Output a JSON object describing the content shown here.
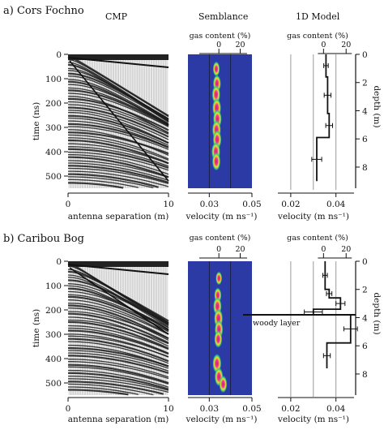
{
  "chart_data": [
    {
      "panel": "a",
      "panel_title": "a) Cors Fochno",
      "type": "figure-row",
      "columns": {
        "cmp": {
          "title": "CMP",
          "xlabel": "antenna separation (m)",
          "ylabel": "time (ns)",
          "xlim": [
            0,
            10
          ],
          "ylim": [
            0,
            550
          ],
          "xticks": [
            "0",
            "10"
          ],
          "yticks": [
            "0",
            "100",
            "200",
            "300",
            "400",
            "500"
          ]
        },
        "semblance": {
          "title": "Semblance",
          "top_label": "gas content (%)",
          "top_ticks": [
            "0",
            "20"
          ],
          "xlabel": "velocity (m ns⁻¹)",
          "xticks": [
            "0.03",
            "0.05"
          ],
          "xlim": [
            0.02,
            0.05
          ],
          "blobs": [
            {
              "v": 0.0333,
              "t": 60,
              "p": 0.55
            },
            {
              "v": 0.0336,
              "t": 120,
              "p": 0.8
            },
            {
              "v": 0.0332,
              "t": 165,
              "p": 0.9
            },
            {
              "v": 0.0335,
              "t": 220,
              "p": 1.0
            },
            {
              "v": 0.0338,
              "t": 265,
              "p": 0.95
            },
            {
              "v": 0.0334,
              "t": 310,
              "p": 1.0
            },
            {
              "v": 0.0337,
              "t": 350,
              "p": 0.95
            },
            {
              "v": 0.0331,
              "t": 400,
              "p": 1.0
            },
            {
              "v": 0.0333,
              "t": 440,
              "p": 0.9
            }
          ]
        },
        "model": {
          "title": "1D Model",
          "top_label": "gas content (%)",
          "top_ticks": [
            "0",
            "20"
          ],
          "xlabel": "velocity (m ns⁻¹)",
          "xticks": [
            "0.02",
            "0.04"
          ],
          "xlim": [
            0.01,
            0.048
          ],
          "ylabel": "depth (m)",
          "depth_ticks": [
            "0",
            "2",
            "4",
            "6",
            "8"
          ],
          "depth_lim": [
            0,
            9.5
          ],
          "steps": [
            {
              "d0": 0.0,
              "d1": 1.6,
              "v": 0.0356,
              "err": 0.001
            },
            {
              "d0": 1.6,
              "d1": 4.2,
              "v": 0.0363,
              "err": 0.0015
            },
            {
              "d0": 4.2,
              "d1": 5.9,
              "v": 0.037,
              "err": 0.0015
            },
            {
              "d0": 5.9,
              "d1": 9.0,
              "v": 0.0315,
              "err": 0.0022
            }
          ]
        }
      }
    },
    {
      "panel": "b",
      "panel_title": "b) Caribou Bog",
      "type": "figure-row",
      "columns": {
        "cmp": {
          "xlabel": "antenna separation (m)",
          "ylabel": "time (ns)",
          "xlim": [
            0,
            10
          ],
          "ylim": [
            0,
            550
          ],
          "xticks": [
            "0",
            "10"
          ],
          "yticks": [
            "0",
            "100",
            "200",
            "300",
            "400",
            "500"
          ]
        },
        "semblance": {
          "top_label": "gas content (%)",
          "top_ticks": [
            "0",
            "20"
          ],
          "xlabel": "velocity (m ns⁻¹)",
          "xticks": [
            "0.03",
            "0.05"
          ],
          "xlim": [
            0.02,
            0.05
          ],
          "blobs": [
            {
              "v": 0.0345,
              "t": 70,
              "p": 0.4
            },
            {
              "v": 0.034,
              "t": 140,
              "p": 0.6
            },
            {
              "v": 0.0338,
              "t": 185,
              "p": 0.9
            },
            {
              "v": 0.0343,
              "t": 235,
              "p": 1.0
            },
            {
              "v": 0.0345,
              "t": 280,
              "p": 0.9
            },
            {
              "v": 0.0342,
              "t": 320,
              "p": 0.8
            },
            {
              "v": 0.0336,
              "t": 420,
              "p": 1.0
            },
            {
              "v": 0.0345,
              "t": 475,
              "p": 0.95
            },
            {
              "v": 0.0365,
              "t": 505,
              "p": 0.8
            }
          ]
        },
        "model": {
          "top_label": "gas content (%)",
          "top_ticks": [
            "0",
            "20"
          ],
          "xlabel": "velocity (m ns⁻¹)",
          "xticks": [
            "0.02",
            "0.04"
          ],
          "xlim": [
            0.01,
            0.048
          ],
          "ylabel": "depth (m)",
          "depth_ticks": [
            "0",
            "2",
            "4",
            "6",
            "8"
          ],
          "depth_lim": [
            0,
            9.5
          ],
          "annotation": "woody layer",
          "annotation_depth": 3.8,
          "steps": [
            {
              "d0": 0.0,
              "d1": 2.0,
              "v": 0.0352,
              "err": 0.001
            },
            {
              "d0": 2.0,
              "d1": 2.6,
              "v": 0.037,
              "err": 0.0012
            },
            {
              "d0": 2.6,
              "d1": 3.4,
              "v": 0.042,
              "err": 0.002
            },
            {
              "d0": 3.4,
              "d1": 3.8,
              "v": 0.03,
              "err": 0.004
            },
            {
              "d0": 3.8,
              "d1": 5.8,
              "v": 0.0465,
              "err": 0.003
            },
            {
              "d0": 5.8,
              "d1": 7.6,
              "v": 0.036,
              "err": 0.0015
            }
          ]
        }
      }
    }
  ]
}
